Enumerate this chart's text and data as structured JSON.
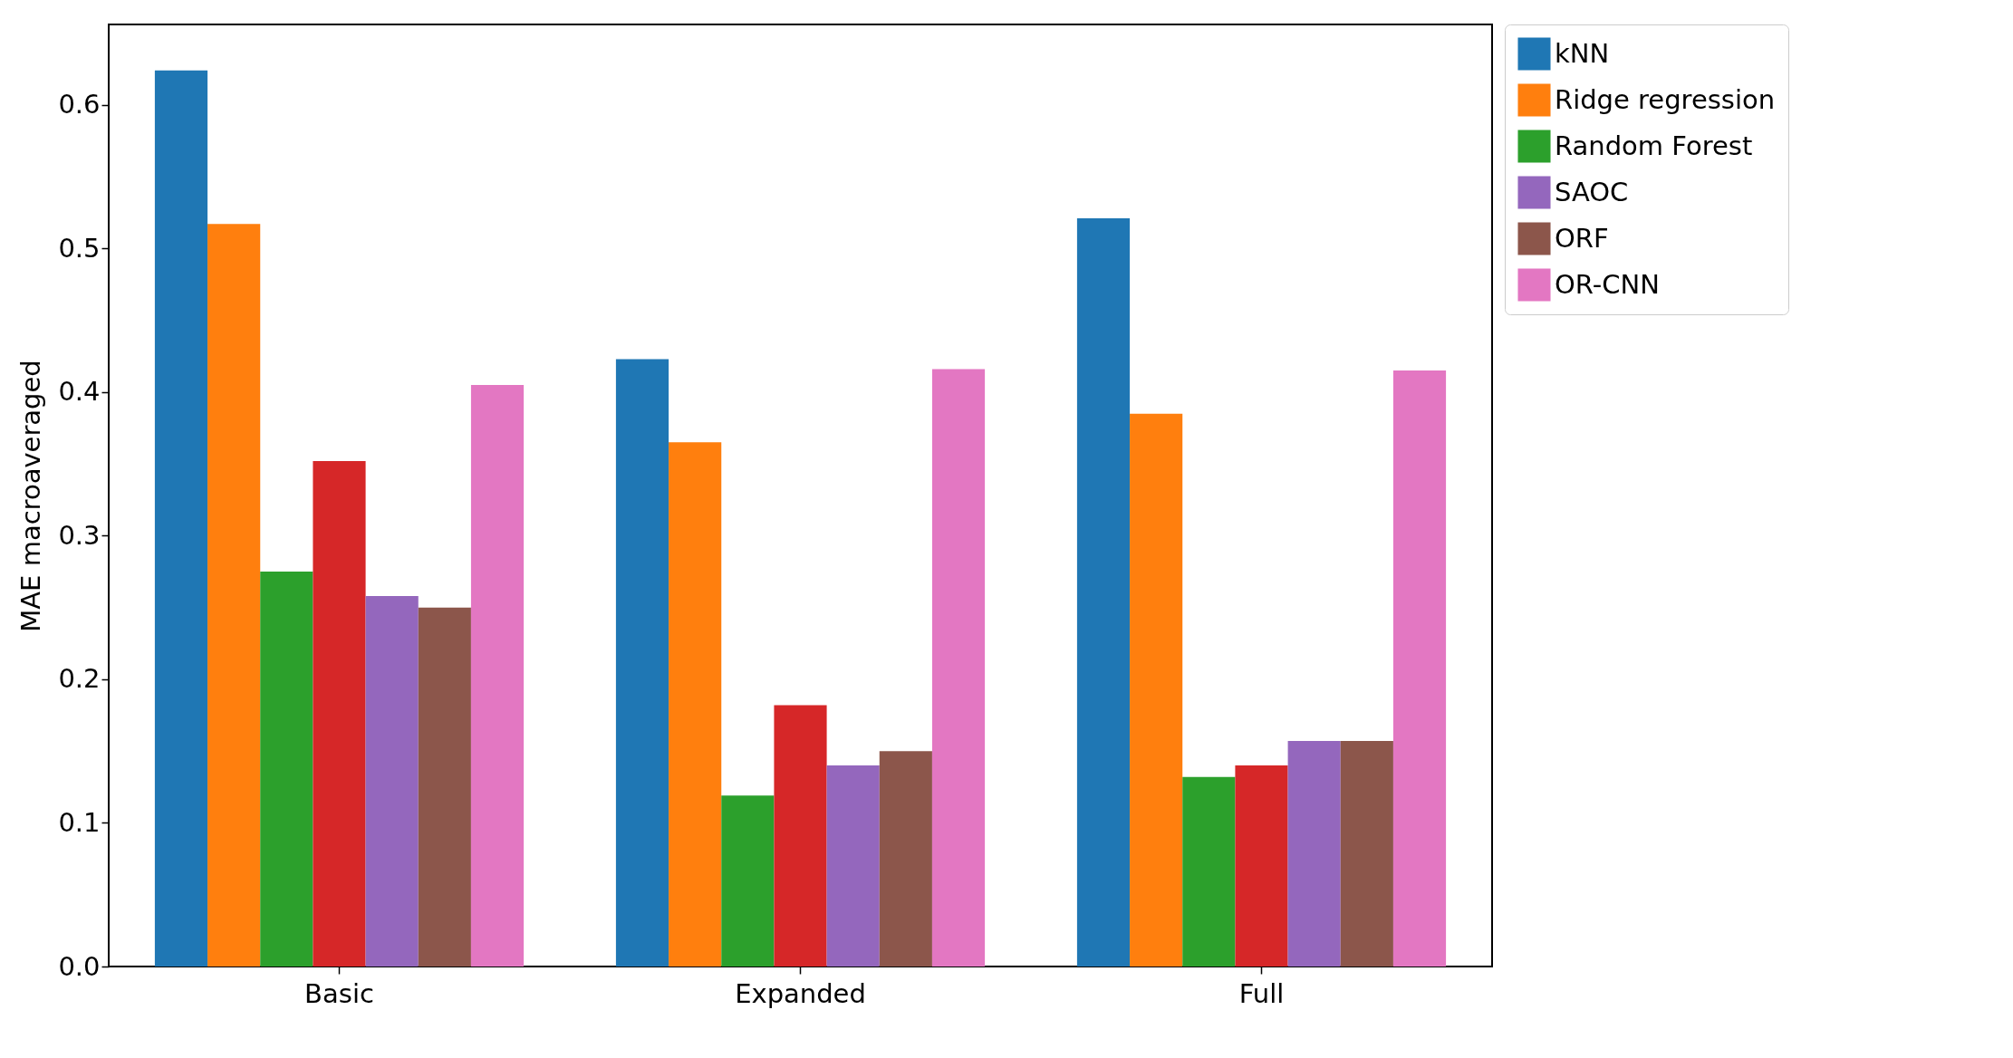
{
  "chart_data": {
    "type": "bar",
    "ylabel": "MAE macroaveraged",
    "categories": [
      "Basic",
      "Expanded",
      "Full"
    ],
    "series": [
      {
        "name": "kNN",
        "color": "#1f77b4",
        "values": [
          0.624,
          0.423,
          0.521
        ]
      },
      {
        "name": "Ridge regression",
        "color": "#ff7f0e",
        "values": [
          0.517,
          0.365,
          0.385
        ]
      },
      {
        "name": "Random Forest",
        "color": "#2ca02c",
        "values": [
          0.275,
          0.119,
          0.132
        ]
      },
      {
        "color": "#d62728",
        "values": [
          0.352,
          0.182,
          0.14
        ]
      },
      {
        "name": "SAOC",
        "color": "#9467bd",
        "values": [
          0.258,
          0.14,
          0.157
        ]
      },
      {
        "name": "ORF",
        "color": "#8c564b",
        "values": [
          0.25,
          0.15,
          0.157
        ]
      },
      {
        "name": "OR-CNN",
        "color": "#e377c2",
        "values": [
          0.405,
          0.416,
          0.415
        ]
      }
    ],
    "ylim": [
      0,
      0.656
    ],
    "yticks": [
      {
        "value": 0,
        "label": "0.0"
      },
      0.1,
      0.2,
      0.3,
      0.4,
      0.5,
      0.6
    ],
    "grid": false,
    "legend": "right"
  }
}
